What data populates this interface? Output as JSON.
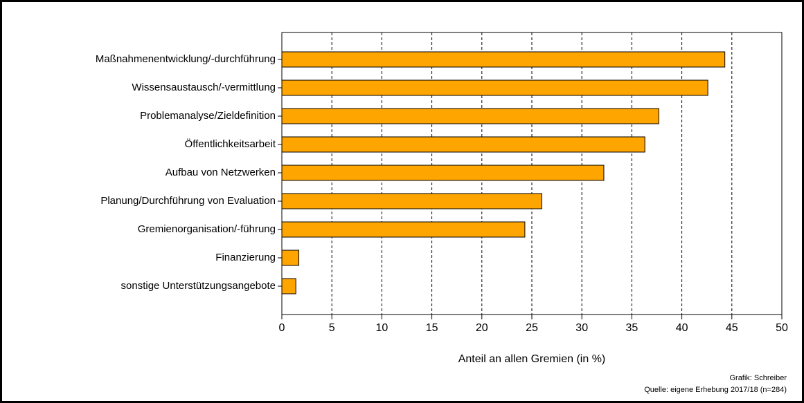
{
  "chart_data": {
    "type": "bar",
    "orientation": "horizontal",
    "categories": [
      "Maßnahmenentwicklung/-durchführung",
      "Wissensaustausch/-vermittlung",
      "Problemanalyse/Zieldefinition",
      "Öffentlichkeitsarbeit",
      "Aufbau von Netzwerken",
      "Planung/Durchführung von Evaluation",
      "Gremienorganisation/-führung",
      "Finanzierung",
      "sonstige Unterstützungsangebote"
    ],
    "values": [
      44.3,
      42.6,
      37.7,
      36.3,
      32.2,
      26.0,
      24.3,
      1.7,
      1.4
    ],
    "color": "#ffa500",
    "x_label": "Anteil an allen Gremien (in %)",
    "xlim": [
      0,
      50
    ],
    "xticks": [
      0,
      5,
      10,
      15,
      20,
      25,
      30,
      35,
      40,
      45,
      50
    ],
    "grid": true,
    "annotations": [
      "Grafik: Schreiber",
      "Quelle: eigene Erhebung 2017/18 (n=284)"
    ]
  }
}
